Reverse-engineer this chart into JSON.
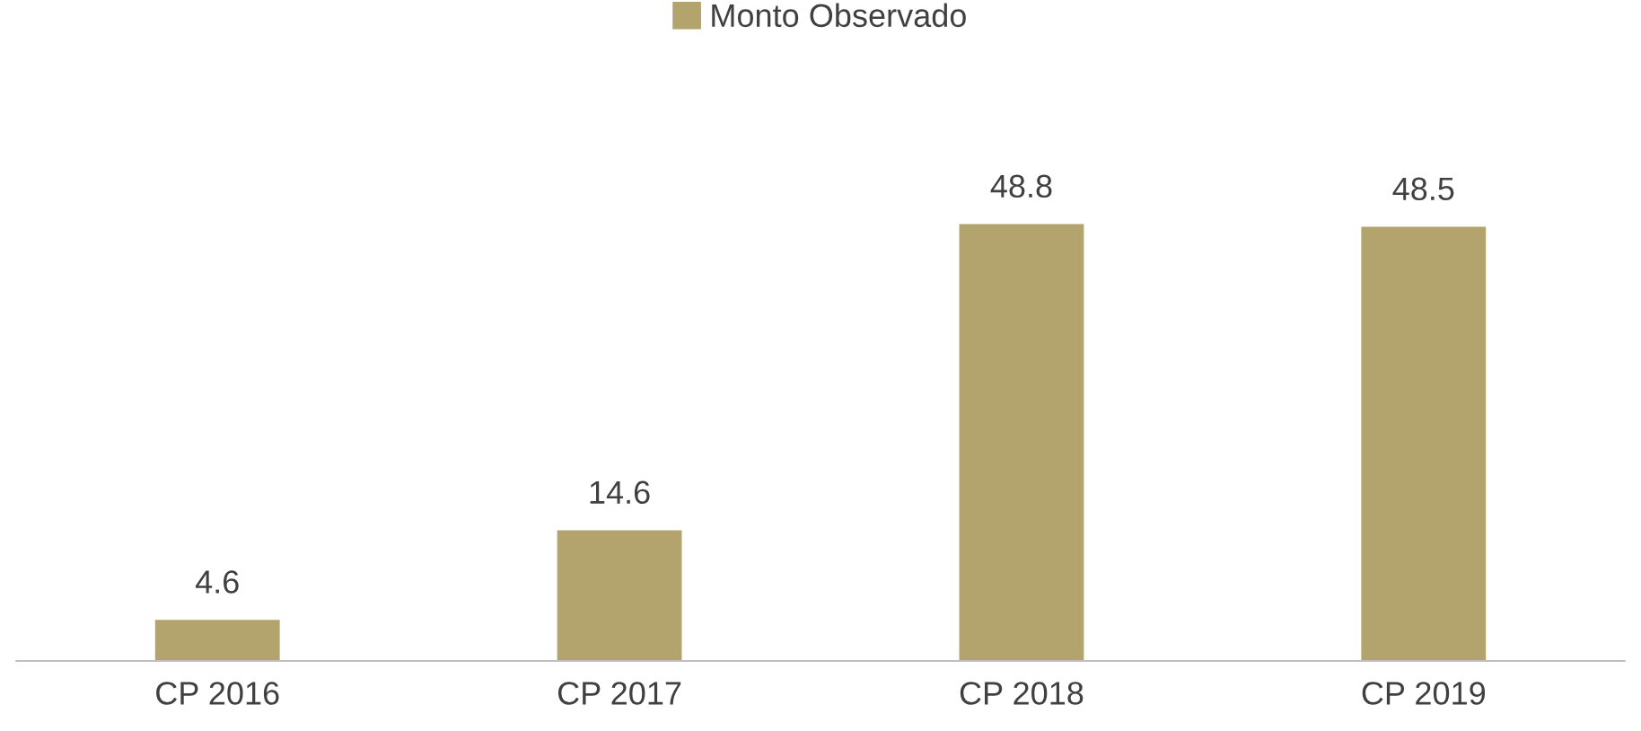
{
  "chart_data": {
    "type": "bar",
    "categories": [
      "CP 2016",
      "CP 2017",
      "CP 2018",
      "CP 2019"
    ],
    "series": [
      {
        "name": "Monto Observado",
        "color": "#b3a46e",
        "values": [
          4.6,
          14.6,
          48.8,
          48.5
        ]
      }
    ],
    "data_labels": true,
    "legend": "top",
    "grid": false
  }
}
